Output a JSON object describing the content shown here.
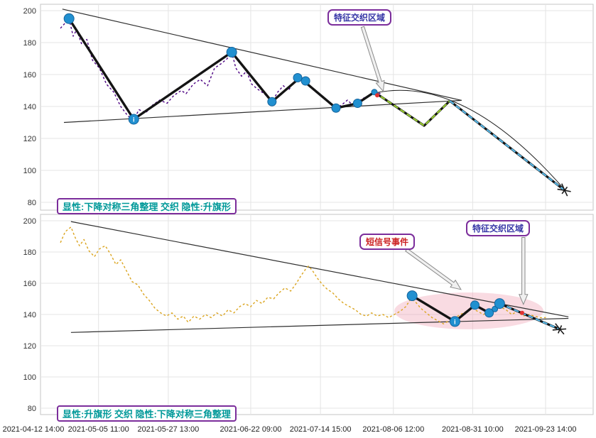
{
  "x_axis": {
    "tick_labels": [
      "2021-04-12 14:00",
      "2021-05-05 11:00",
      "2021-05-27 13:00",
      "2021-06-22 09:00",
      "2021-07-14 15:00",
      "2021-08-06 12:00",
      "2021-08-31 10:00",
      "2021-09-23 14:00"
    ],
    "tick_days": [
      0,
      23,
      45,
      71,
      93,
      116,
      141,
      164
    ],
    "domain_days": [
      4.7,
      179.0
    ]
  },
  "y_axis": {
    "ticks": [
      80,
      100,
      120,
      140,
      160,
      180,
      200
    ]
  },
  "colors": {
    "price_top": "#4b0082",
    "price_bottom": "#dba520",
    "zigzag": "#141414",
    "marker": "#2190d0",
    "marker_stroke": "#14639c",
    "signal": "#e03131",
    "hidden_projection": "#9acd32",
    "forecast": "#57b8e8",
    "trendline": "#2f2f2f",
    "grid": "#e4e4e4",
    "annotation_border": "#7b2d9b",
    "annotation_text_blue": "#3434a6",
    "annotation_text_red": "#cc2222",
    "pattern_text": "#009999",
    "highlight": "#f0a0b4"
  },
  "chart_data": [
    {
      "type": "line",
      "ylim": [
        80,
        200
      ],
      "pattern_label": "显性:下降对称三角整理 交织 隐性:升旗形",
      "annotations": [
        {
          "text": "特征交织区域",
          "color": "#3434a6"
        }
      ],
      "arrows": [
        {
          "from": [
            106.3,
            189.8
          ],
          "to": [
            112.8,
            149.5
          ]
        }
      ],
      "trendlines": [
        {
          "name": "upper-triangle-line",
          "points": [
            [
              11.6,
              201
            ],
            [
              137.5,
              143.8
            ]
          ]
        },
        {
          "name": "lower-triangle-line",
          "points": [
            [
              12.1,
              130
            ],
            [
              137.5,
              143.8
            ]
          ]
        }
      ],
      "curve": {
        "from": [
          110.3,
          148.5
        ],
        "ctrl": [
          138,
          160
        ],
        "to": [
          169.3,
          89.5
        ]
      },
      "series": [
        {
          "name": "price-line",
          "color": "#4b0082",
          "dash": "3 3",
          "width": 1.4,
          "points": [
            [
              11,
              189
            ],
            [
              13.7,
              195
            ],
            [
              15,
              184
            ],
            [
              16.1,
              188
            ],
            [
              17.7,
              179
            ],
            [
              19.3,
              182
            ],
            [
              21.1,
              169
            ],
            [
              23.3,
              164
            ],
            [
              25.5,
              154
            ],
            [
              27.8,
              149
            ],
            [
              30,
              140
            ],
            [
              32.3,
              134
            ],
            [
              34.1,
              132
            ],
            [
              35.8,
              138
            ],
            [
              37.9,
              136
            ],
            [
              40.1,
              141
            ],
            [
              42.3,
              144
            ],
            [
              44.6,
              142
            ],
            [
              46.8,
              147
            ],
            [
              49.1,
              150
            ],
            [
              50.6,
              148
            ],
            [
              52.9,
              154
            ],
            [
              55.1,
              157
            ],
            [
              57.4,
              153
            ],
            [
              59.6,
              164
            ],
            [
              61.8,
              167
            ],
            [
              63.6,
              170
            ],
            [
              65,
              174
            ],
            [
              66.3,
              164
            ],
            [
              68.1,
              159
            ],
            [
              69.7,
              162
            ],
            [
              71.3,
              154
            ],
            [
              73.1,
              151
            ],
            [
              75.3,
              148
            ],
            [
              77.7,
              143
            ],
            [
              79.5,
              149
            ],
            [
              81.3,
              153
            ],
            [
              82.9,
              150
            ],
            [
              84.4,
              155
            ],
            [
              86,
              157
            ],
            [
              87.6,
              158
            ],
            [
              89.2,
              153
            ],
            [
              91,
              150
            ],
            [
              92.8,
              147
            ],
            [
              94.6,
              144
            ],
            [
              96.4,
              141
            ],
            [
              97.9,
              139
            ],
            [
              99.7,
              141
            ],
            [
              101.5,
              144
            ],
            [
              103.1,
              141
            ],
            [
              104.7,
              143
            ],
            [
              106.4,
              145
            ],
            [
              108.2,
              147
            ],
            [
              110,
              149
            ],
            [
              112.3,
              148
            ]
          ]
        },
        {
          "name": "pivot-zigzag",
          "color": "#141414",
          "width": 3.4,
          "points": [
            [
              13.7,
              195
            ],
            [
              34.1,
              132
            ],
            [
              65,
              174
            ],
            [
              77.7,
              143
            ],
            [
              86.5,
              158
            ],
            [
              97.9,
              139
            ],
            [
              104.7,
              142
            ],
            [
              110,
              149
            ]
          ]
        },
        {
          "name": "hidden-flag-projection",
          "color": "#9acd32",
          "dash": "7 4",
          "width": 2.2,
          "outline": "#141414",
          "points": [
            [
              110,
              149
            ],
            [
              125.7,
              128
            ],
            [
              133.8,
              143.5
            ]
          ]
        },
        {
          "name": "forecast-line",
          "color": "#57b8e8",
          "dash": "7 4",
          "width": 2.2,
          "outline": "#141414",
          "points": [
            [
              133.8,
              143.5
            ],
            [
              170,
              87.5
            ]
          ]
        }
      ],
      "markers": [
        [
          13.7,
          195,
          7
        ],
        [
          34.1,
          132,
          7,
          "i"
        ],
        [
          65,
          174,
          7
        ],
        [
          77.7,
          143,
          6
        ],
        [
          85.8,
          158,
          6
        ],
        [
          88.3,
          156,
          6
        ],
        [
          97.9,
          139,
          6
        ],
        [
          104.7,
          142,
          6
        ],
        [
          110,
          149,
          4
        ]
      ],
      "signal_markers": [
        [
          110.9,
          147
        ]
      ],
      "end_cap": {
        "from": [
          133.8,
          143.5
        ],
        "at": [
          170,
          87.5
        ]
      }
    },
    {
      "type": "line",
      "ylim": [
        80,
        200
      ],
      "pattern_label": "显性:升旗形 交织 隐性:下降对称三角整理",
      "annotations": [
        {
          "text": "短信号事件",
          "color": "#cc2222"
        },
        {
          "text": "特征交织区域",
          "color": "#3434a6"
        }
      ],
      "arrows": [
        {
          "from": [
            120.1,
            181.4
          ],
          "to": [
            137.3,
            156
          ]
        },
        {
          "from": [
            157,
            189.3
          ],
          "to": [
            157,
            146.5
          ]
        }
      ],
      "highlight_ellipse": {
        "t": 139.8,
        "p": 142.3,
        "rt": 23.5,
        "rp": 11.8,
        "color": "#f0a0b4",
        "opacity": 0.38
      },
      "trendlines": [
        {
          "name": "upper-flag-line",
          "points": [
            [
              14.3,
              199.5
            ],
            [
              171.2,
              138.5
            ]
          ]
        },
        {
          "name": "lower-flag-line",
          "points": [
            [
              14.3,
              128.5
            ],
            [
              171.2,
              137.5
            ]
          ]
        }
      ],
      "series": [
        {
          "name": "price-line",
          "color": "#dba520",
          "dash": "3 3",
          "width": 1.4,
          "points": [
            [
              11,
              186
            ],
            [
              12.5,
              193
            ],
            [
              14.3,
              196
            ],
            [
              15.7,
              189
            ],
            [
              17,
              184
            ],
            [
              18.4,
              188
            ],
            [
              19.9,
              181
            ],
            [
              21.7,
              177
            ],
            [
              23.3,
              182
            ],
            [
              25.1,
              184
            ],
            [
              26.7,
              179
            ],
            [
              28.5,
              172
            ],
            [
              30,
              175
            ],
            [
              31.8,
              168
            ],
            [
              33.6,
              161
            ],
            [
              35.4,
              159
            ],
            [
              37.2,
              153
            ],
            [
              39,
              149
            ],
            [
              40.8,
              144
            ],
            [
              42.6,
              141
            ],
            [
              44.4,
              139
            ],
            [
              46.2,
              141
            ],
            [
              48,
              137
            ],
            [
              49.7,
              139
            ],
            [
              51.3,
              135
            ],
            [
              53.1,
              139
            ],
            [
              54.9,
              137
            ],
            [
              56.7,
              140
            ],
            [
              58.5,
              138
            ],
            [
              60.3,
              141
            ],
            [
              62.1,
              139
            ],
            [
              63.9,
              143
            ],
            [
              65.7,
              141
            ],
            [
              67.5,
              145
            ],
            [
              69.2,
              147
            ],
            [
              71,
              145
            ],
            [
              72.8,
              149
            ],
            [
              74.6,
              147
            ],
            [
              76.4,
              151
            ],
            [
              78.2,
              150
            ],
            [
              80,
              154
            ],
            [
              81.8,
              157
            ],
            [
              83.6,
              155
            ],
            [
              85.4,
              160
            ],
            [
              86.9,
              165
            ],
            [
              88.3,
              169
            ],
            [
              89.2,
              171
            ],
            [
              90.5,
              168
            ],
            [
              92.1,
              163
            ],
            [
              93.7,
              159
            ],
            [
              95.2,
              156
            ],
            [
              96.8,
              154
            ],
            [
              98.6,
              150
            ],
            [
              100.4,
              147
            ],
            [
              102.2,
              145
            ],
            [
              104,
              143
            ],
            [
              105.8,
              140
            ],
            [
              107.6,
              139
            ],
            [
              109.1,
              141
            ],
            [
              110.9,
              139
            ],
            [
              112.7,
              140
            ],
            [
              114.5,
              138
            ],
            [
              116.3,
              140
            ],
            [
              118.1,
              142
            ],
            [
              119.9,
              145
            ],
            [
              121.5,
              150
            ],
            [
              123,
              148
            ],
            [
              124.6,
              144
            ],
            [
              126.4,
              141
            ],
            [
              128.2,
              138
            ],
            [
              130,
              136
            ],
            [
              131.8,
              134
            ],
            [
              133.6,
              136
            ],
            [
              135.4,
              138
            ],
            [
              137.2,
              140
            ],
            [
              139,
              142
            ],
            [
              140.8,
              144
            ],
            [
              142.6,
              142
            ],
            [
              144.4,
              140
            ],
            [
              146.2,
              142
            ],
            [
              148,
              144
            ],
            [
              149.7,
              145
            ],
            [
              151.5,
              143
            ],
            [
              153.3,
              140
            ],
            [
              155.1,
              142
            ],
            [
              156.9,
              139
            ],
            [
              158.7,
              140
            ],
            [
              160.5,
              139
            ],
            [
              162.3,
              138
            ],
            [
              164.1,
              138
            ]
          ]
        },
        {
          "name": "pivot-zigzag",
          "color": "#141414",
          "width": 3.4,
          "points": [
            [
              121.9,
              152
            ],
            [
              135.4,
              135.5
            ],
            [
              141.7,
              146
            ],
            [
              146.2,
              141
            ],
            [
              149.5,
              147
            ]
          ]
        },
        {
          "name": "forecast-line",
          "color": "#57b8e8",
          "dash": "7 4",
          "width": 2.2,
          "outline": "#141414",
          "points": [
            [
              149.5,
              147
            ],
            [
              168.5,
              130.5
            ]
          ]
        }
      ],
      "markers": [
        [
          121.9,
          152,
          7
        ],
        [
          135.4,
          135.5,
          7,
          "i"
        ],
        [
          141.7,
          146,
          6
        ],
        [
          146.2,
          141,
          6
        ],
        [
          148,
          143.5,
          4
        ],
        [
          149.5,
          147,
          7
        ]
      ],
      "signal_markers": [
        [
          156.6,
          141
        ]
      ],
      "end_cap": {
        "from": [
          149.5,
          147
        ],
        "at": [
          168.5,
          130.5
        ]
      }
    }
  ]
}
